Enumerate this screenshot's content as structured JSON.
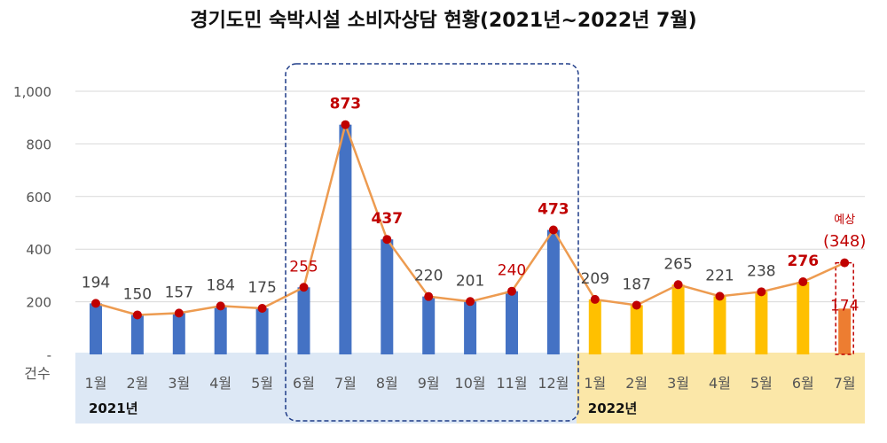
{
  "chart_data": {
    "type": "bar",
    "title": "경기도민 숙박시설 소비자상담 현황(2021년~2022년 7월)",
    "ylabel": "건수",
    "ylim": [
      0,
      1000
    ],
    "yticks": [
      {
        "v": 0,
        "label": "-"
      },
      {
        "v": 200,
        "label": "200"
      },
      {
        "v": 400,
        "label": "400"
      },
      {
        "v": 600,
        "label": "600"
      },
      {
        "v": 800,
        "label": "800"
      },
      {
        "v": 1000,
        "label": "1,000"
      }
    ],
    "categories": [
      "1월",
      "2월",
      "3월",
      "4월",
      "5월",
      "6월",
      "7월",
      "8월",
      "9월",
      "10월",
      "11월",
      "12월",
      "1월",
      "2월",
      "3월",
      "4월",
      "5월",
      "6월",
      "7월"
    ],
    "values": [
      194,
      150,
      157,
      184,
      175,
      255,
      873,
      437,
      220,
      201,
      240,
      473,
      209,
      187,
      265,
      221,
      238,
      276,
      174
    ],
    "line_values": [
      194,
      150,
      157,
      184,
      175,
      255,
      873,
      437,
      220,
      201,
      240,
      473,
      209,
      187,
      265,
      221,
      238,
      276,
      348
    ],
    "labels": [
      "194",
      "150",
      "157",
      "184",
      "175",
      "255",
      "873",
      "437",
      "220",
      "201",
      "240",
      "473",
      "209",
      "187",
      "265",
      "221",
      "238",
      "276",
      "174"
    ],
    "highlight": [
      false,
      false,
      false,
      false,
      false,
      true,
      true,
      true,
      false,
      false,
      true,
      true,
      false,
      false,
      false,
      false,
      false,
      true,
      true
    ],
    "year_groups": [
      {
        "label": "2021년",
        "from": 0,
        "to": 11
      },
      {
        "label": "2022년",
        "from": 12,
        "to": 18
      }
    ],
    "forecast": {
      "label": "예상",
      "value_label": "(348)"
    },
    "colors": {
      "bar2021": "#4472c4",
      "bar2022": "#ffc000",
      "bar_partial": "#ed7d31",
      "line": "#ed9b50",
      "marker": "#c00000",
      "highlight_text": "#c00000",
      "band2021": "#dde8f5",
      "band2022": "#fbe7a8",
      "box": "#1f3c88"
    }
  }
}
